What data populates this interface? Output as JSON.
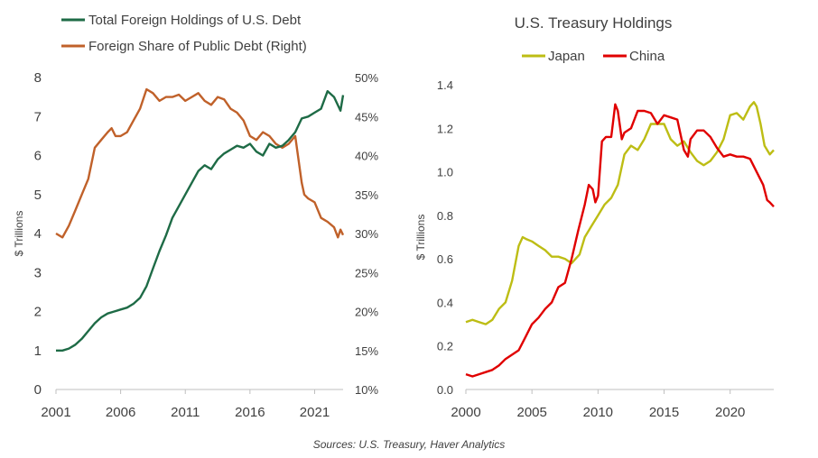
{
  "source": "Sources: U.S. Treasury, Haver Analytics",
  "colors": {
    "green": "#1e6b46",
    "orange": "#c0612a",
    "olive": "#bdbd14",
    "red": "#e00000",
    "axis": "#bfbfbf",
    "text": "#404040"
  },
  "chart_data": [
    {
      "type": "line",
      "title": "",
      "ylabel": "$ Trillions",
      "y2label": "",
      "xlim": [
        2001,
        2023.2
      ],
      "ylim": [
        0,
        8
      ],
      "y2lim": [
        10,
        50
      ],
      "xticks": [
        2001,
        2006,
        2011,
        2016,
        2021
      ],
      "yticks": [
        0,
        1,
        2,
        3,
        4,
        5,
        6,
        7,
        8
      ],
      "y2ticks": [
        "10%",
        "15%",
        "20%",
        "25%",
        "30%",
        "35%",
        "40%",
        "45%",
        "50%"
      ],
      "legend_position": "top",
      "series": [
        {
          "name": "Total Foreign Holdings of U.S. Debt",
          "color": "#1e6b46",
          "axis": "left",
          "x": [
            2001,
            2001.5,
            2002,
            2002.5,
            2003,
            2003.5,
            2004,
            2004.5,
            2005,
            2005.5,
            2006,
            2006.5,
            2007,
            2007.5,
            2008,
            2008.5,
            2009,
            2009.5,
            2010,
            2010.5,
            2011,
            2011.5,
            2012,
            2012.5,
            2013,
            2013.5,
            2014,
            2014.5,
            2015,
            2015.5,
            2016,
            2016.5,
            2017,
            2017.5,
            2018,
            2018.5,
            2019,
            2019.5,
            2020,
            2020.5,
            2021,
            2021.5,
            2022,
            2022.5,
            2023,
            2023.2
          ],
          "y": [
            1.0,
            1.0,
            1.05,
            1.15,
            1.3,
            1.5,
            1.7,
            1.85,
            1.95,
            2.0,
            2.05,
            2.1,
            2.2,
            2.35,
            2.65,
            3.1,
            3.55,
            3.95,
            4.4,
            4.7,
            5.0,
            5.3,
            5.6,
            5.75,
            5.65,
            5.9,
            6.05,
            6.15,
            6.25,
            6.2,
            6.3,
            6.1,
            6.0,
            6.3,
            6.2,
            6.25,
            6.4,
            6.6,
            6.95,
            7.0,
            7.1,
            7.2,
            7.65,
            7.5,
            7.15,
            7.55
          ]
        },
        {
          "name": "Foreign Share of Public Debt (Right)",
          "color": "#c0612a",
          "axis": "right",
          "x": [
            2001,
            2001.5,
            2002,
            2002.5,
            2003,
            2003.5,
            2004,
            2004.5,
            2005,
            2005.3,
            2005.6,
            2006,
            2006.5,
            2007,
            2007.5,
            2008,
            2008.5,
            2009,
            2009.5,
            2010,
            2010.5,
            2011,
            2011.5,
            2012,
            2012.5,
            2013,
            2013.5,
            2014,
            2014.5,
            2015,
            2015.5,
            2016,
            2016.5,
            2017,
            2017.5,
            2018,
            2018.5,
            2019,
            2019.5,
            2020,
            2020.2,
            2020.5,
            2021,
            2021.5,
            2022,
            2022.5,
            2022.8,
            2023,
            2023.2
          ],
          "y": [
            30,
            29.5,
            31,
            33,
            35,
            37,
            41,
            42,
            43,
            43.5,
            42.5,
            42.5,
            43,
            44.5,
            46,
            48.5,
            48,
            47,
            47.5,
            47.5,
            47.8,
            47,
            47.5,
            48,
            47,
            46.5,
            47.5,
            47.2,
            46,
            45.5,
            44.5,
            42.5,
            42,
            43,
            42.5,
            41.5,
            41,
            41.5,
            42.5,
            36.5,
            35,
            34.5,
            34,
            32,
            31.5,
            30.8,
            29.5,
            30.5,
            29.8
          ]
        }
      ]
    },
    {
      "type": "line",
      "title": "U.S. Treasury  Holdings",
      "ylabel": "$ Trillions",
      "xlim": [
        2000,
        2023.3
      ],
      "ylim": [
        0,
        1.4
      ],
      "xticks": [
        2000,
        2005,
        2010,
        2015,
        2020
      ],
      "yticks": [
        "0.0",
        "0.2",
        "0.4",
        "0.6",
        "0.8",
        "1.0",
        "1.2",
        "1.4"
      ],
      "legend_position": "top",
      "series": [
        {
          "name": "Japan",
          "color": "#bdbd14",
          "x": [
            2000,
            2000.5,
            2001,
            2001.5,
            2002,
            2002.5,
            2003,
            2003.5,
            2004,
            2004.3,
            2004.6,
            2005,
            2005.5,
            2006,
            2006.5,
            2007,
            2007.5,
            2008,
            2008.3,
            2008.6,
            2009,
            2009.5,
            2010,
            2010.5,
            2011,
            2011.5,
            2012,
            2012.5,
            2013,
            2013.5,
            2014,
            2014.5,
            2015,
            2015.5,
            2016,
            2016.5,
            2017,
            2017.5,
            2018,
            2018.5,
            2019,
            2019.5,
            2020,
            2020.5,
            2021,
            2021.5,
            2021.8,
            2022,
            2022.3,
            2022.6,
            2023,
            2023.3
          ],
          "y": [
            0.31,
            0.32,
            0.31,
            0.3,
            0.32,
            0.37,
            0.4,
            0.5,
            0.66,
            0.7,
            0.69,
            0.68,
            0.66,
            0.64,
            0.61,
            0.61,
            0.6,
            0.58,
            0.6,
            0.62,
            0.7,
            0.75,
            0.8,
            0.85,
            0.88,
            0.94,
            1.08,
            1.12,
            1.1,
            1.15,
            1.22,
            1.22,
            1.22,
            1.15,
            1.12,
            1.14,
            1.09,
            1.05,
            1.03,
            1.05,
            1.09,
            1.15,
            1.26,
            1.27,
            1.24,
            1.3,
            1.32,
            1.3,
            1.22,
            1.12,
            1.08,
            1.1
          ]
        },
        {
          "name": "China",
          "color": "#e00000",
          "x": [
            2000,
            2000.5,
            2001,
            2001.5,
            2002,
            2002.5,
            2003,
            2003.5,
            2004,
            2004.5,
            2005,
            2005.5,
            2006,
            2006.5,
            2007,
            2007.5,
            2008,
            2008.5,
            2009,
            2009.3,
            2009.6,
            2009.8,
            2010,
            2010.3,
            2010.6,
            2011,
            2011.3,
            2011.5,
            2011.8,
            2012,
            2012.5,
            2013,
            2013.5,
            2014,
            2014.5,
            2015,
            2015.5,
            2016,
            2016.5,
            2016.8,
            2017,
            2017.5,
            2018,
            2018.5,
            2019,
            2019.5,
            2020,
            2020.5,
            2021,
            2021.5,
            2022,
            2022.5,
            2022.8,
            2023,
            2023.3
          ],
          "y": [
            0.07,
            0.06,
            0.07,
            0.08,
            0.09,
            0.11,
            0.14,
            0.16,
            0.18,
            0.24,
            0.3,
            0.33,
            0.37,
            0.4,
            0.47,
            0.49,
            0.6,
            0.73,
            0.85,
            0.94,
            0.92,
            0.86,
            0.89,
            1.14,
            1.16,
            1.16,
            1.31,
            1.28,
            1.15,
            1.18,
            1.2,
            1.28,
            1.28,
            1.27,
            1.22,
            1.26,
            1.25,
            1.24,
            1.1,
            1.07,
            1.15,
            1.19,
            1.19,
            1.16,
            1.11,
            1.07,
            1.08,
            1.07,
            1.07,
            1.06,
            1.0,
            0.94,
            0.87,
            0.86,
            0.84
          ]
        }
      ]
    }
  ]
}
